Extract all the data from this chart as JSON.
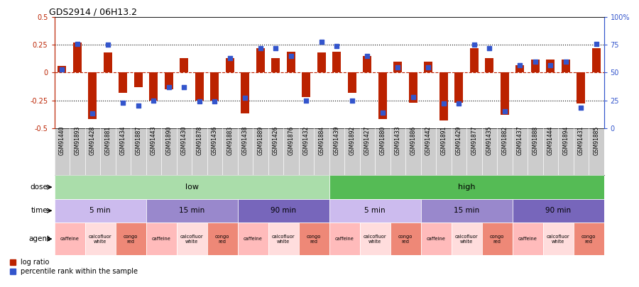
{
  "title": "GDS2914 / 06H13.2",
  "samples": [
    "GSM91440",
    "GSM91893",
    "GSM91428",
    "GSM91881",
    "GSM91434",
    "GSM91887",
    "GSM91443",
    "GSM91890",
    "GSM91430",
    "GSM91878",
    "GSM91436",
    "GSM91883",
    "GSM91438",
    "GSM91889",
    "GSM91426",
    "GSM91876",
    "GSM91432",
    "GSM91884",
    "GSM91439",
    "GSM91892",
    "GSM91427",
    "GSM91880",
    "GSM91433",
    "GSM91886",
    "GSM91442",
    "GSM91891",
    "GSM91429",
    "GSM91877",
    "GSM91435",
    "GSM91882",
    "GSM91437",
    "GSM91888",
    "GSM91444",
    "GSM91894",
    "GSM91431",
    "GSM91885"
  ],
  "log_ratio": [
    0.06,
    0.27,
    -0.42,
    0.18,
    -0.18,
    -0.13,
    -0.25,
    -0.15,
    0.13,
    -0.25,
    -0.25,
    0.13,
    -0.37,
    0.22,
    0.13,
    0.19,
    -0.22,
    0.18,
    0.19,
    -0.18,
    0.15,
    -0.42,
    0.1,
    -0.27,
    0.1,
    -0.43,
    -0.27,
    0.22,
    0.13,
    -0.38,
    0.07,
    0.12,
    0.12,
    0.12,
    -0.28,
    0.22
  ],
  "percentile": [
    53,
    76,
    13,
    75,
    23,
    20,
    25,
    37,
    37,
    24,
    24,
    63,
    27,
    72,
    72,
    65,
    25,
    78,
    74,
    25,
    65,
    14,
    55,
    28,
    55,
    22,
    22,
    75,
    72,
    15,
    57,
    60,
    57,
    60,
    18,
    76
  ],
  "ylim": [
    -0.5,
    0.5
  ],
  "yticks_left": [
    -0.5,
    -0.25,
    0,
    0.25,
    0.5
  ],
  "ytick_labels_left": [
    "-0.5",
    "-0.25",
    "0",
    "0.25",
    "0.5"
  ],
  "ytick_labels_right": [
    "0",
    "25",
    "50",
    "75",
    "100%"
  ],
  "bar_color": "#bb2200",
  "dot_color": "#3355cc",
  "bg_xtick_color": "#cccccc",
  "dose_low_color": "#aaddaa",
  "dose_high_color": "#55bb55",
  "time_colors": [
    "#ccbbee",
    "#9988cc",
    "#7766bb"
  ],
  "dose_groups": [
    {
      "label": "low",
      "start": 0,
      "end": 18
    },
    {
      "label": "high",
      "start": 18,
      "end": 36
    }
  ],
  "time_groups": [
    {
      "label": "5 min",
      "start": 0,
      "end": 6,
      "color_idx": 0
    },
    {
      "label": "15 min",
      "start": 6,
      "end": 12,
      "color_idx": 1
    },
    {
      "label": "90 min",
      "start": 12,
      "end": 18,
      "color_idx": 2
    },
    {
      "label": "5 min",
      "start": 18,
      "end": 24,
      "color_idx": 0
    },
    {
      "label": "15 min",
      "start": 24,
      "end": 30,
      "color_idx": 1
    },
    {
      "label": "90 min",
      "start": 30,
      "end": 36,
      "color_idx": 2
    }
  ],
  "agent_groups": [
    {
      "label": "caffeine",
      "start": 0,
      "end": 2,
      "color": "#ffbbbb"
    },
    {
      "label": "calcofluor\nwhite",
      "start": 2,
      "end": 4,
      "color": "#ffdddd"
    },
    {
      "label": "congo\nred",
      "start": 4,
      "end": 6,
      "color": "#ee8877"
    },
    {
      "label": "caffeine",
      "start": 6,
      "end": 8,
      "color": "#ffbbbb"
    },
    {
      "label": "calcofluor\nwhite",
      "start": 8,
      "end": 10,
      "color": "#ffdddd"
    },
    {
      "label": "congo\nred",
      "start": 10,
      "end": 12,
      "color": "#ee8877"
    },
    {
      "label": "caffeine",
      "start": 12,
      "end": 14,
      "color": "#ffbbbb"
    },
    {
      "label": "calcofluor\nwhite",
      "start": 14,
      "end": 16,
      "color": "#ffdddd"
    },
    {
      "label": "congo\nred",
      "start": 16,
      "end": 18,
      "color": "#ee8877"
    },
    {
      "label": "caffeine",
      "start": 18,
      "end": 20,
      "color": "#ffbbbb"
    },
    {
      "label": "calcofluor\nwhite",
      "start": 20,
      "end": 22,
      "color": "#ffdddd"
    },
    {
      "label": "congo\nred",
      "start": 22,
      "end": 24,
      "color": "#ee8877"
    },
    {
      "label": "caffeine",
      "start": 24,
      "end": 26,
      "color": "#ffbbbb"
    },
    {
      "label": "calcofluor\nwhite",
      "start": 26,
      "end": 28,
      "color": "#ffdddd"
    },
    {
      "label": "congo\nred",
      "start": 28,
      "end": 30,
      "color": "#ee8877"
    },
    {
      "label": "caffeine",
      "start": 30,
      "end": 32,
      "color": "#ffbbbb"
    },
    {
      "label": "calcofluor\nwhite",
      "start": 32,
      "end": 34,
      "color": "#ffdddd"
    },
    {
      "label": "congo\nred",
      "start": 34,
      "end": 36,
      "color": "#ee8877"
    }
  ],
  "legend_items": [
    {
      "label": "log ratio",
      "color": "#bb2200"
    },
    {
      "label": "percentile rank within the sample",
      "color": "#3355cc"
    }
  ]
}
